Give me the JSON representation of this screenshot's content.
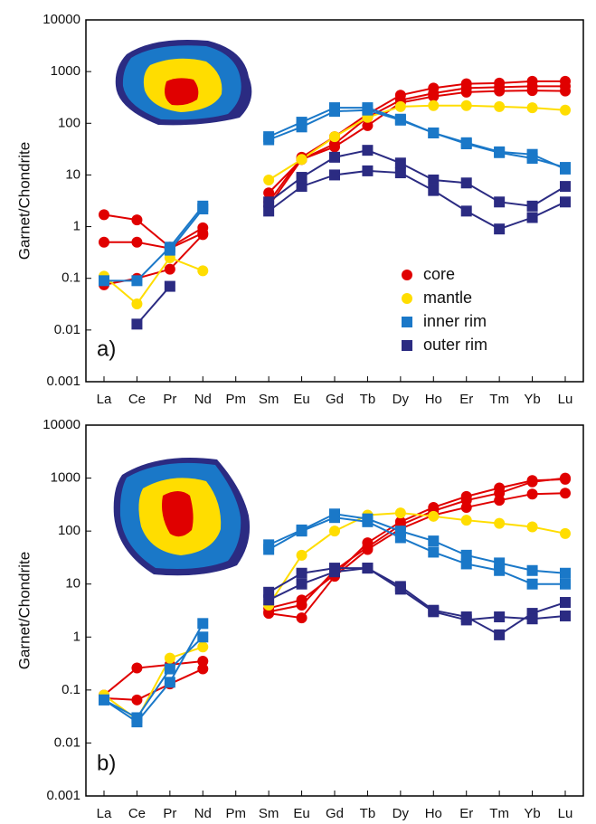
{
  "chart_data": [
    {
      "type": "line",
      "log_scale": true,
      "ylabel": "Garnet/Chondrite",
      "annotation": "a)",
      "legend": "lower right",
      "categories": [
        "La",
        "Ce",
        "Pr",
        "Nd",
        "Pm",
        "Sm",
        "Eu",
        "Gd",
        "Tb",
        "Dy",
        "Ho",
        "Er",
        "Tm",
        "Yb",
        "Lu"
      ],
      "ylim": [
        0.001,
        10000
      ],
      "yticks": [
        0.001,
        0.01,
        0.1,
        1,
        10,
        100,
        1000,
        10000
      ],
      "series": [
        {
          "name": "core",
          "color": "#e00000",
          "marker": "circle",
          "lines": [
            [
              1.7,
              1.35,
              0.4,
              0.95,
              null,
              4.5,
              20,
              35,
              90,
              250,
              330,
              400,
              420,
              430,
              420
            ],
            [
              0.5,
              0.5,
              0.38,
              0.75,
              null,
              3,
              22,
              55,
              150,
              350,
              480,
              580,
              600,
              650,
              650
            ],
            [
              0.075,
              0.1,
              0.15,
              0.7,
              null,
              2.5,
              20,
              40,
              130,
              280,
              380,
              480,
              500,
              520,
              520
            ]
          ]
        },
        {
          "name": "mantle",
          "color": "#ffdd00",
          "marker": "circle",
          "lines": [
            [
              0.11,
              0.032,
              0.25,
              0.14,
              null,
              8,
              20,
              55,
              130,
              210,
              220,
              220,
              210,
              200,
              180
            ]
          ]
        },
        {
          "name": "inner rim",
          "color": "#1a78c8",
          "marker": "square",
          "lines": [
            [
              0.09,
              0.09,
              0.4,
              2.5,
              null,
              55,
              105,
              200,
              200,
              120,
              65,
              42,
              28,
              25,
              13
            ],
            [
              null,
              null,
              0.35,
              2.2,
              null,
              48,
              85,
              170,
              180,
              115,
              65,
              40,
              27,
              21,
              14
            ]
          ]
        },
        {
          "name": "outer rim",
          "color": "#2b2b82",
          "marker": "square",
          "lines": [
            [
              null,
              0.013,
              0.07,
              null,
              null,
              2,
              6,
              10,
              12,
              11,
              5,
              2,
              0.9,
              1.5,
              3
            ],
            [
              null,
              null,
              null,
              null,
              null,
              3,
              9,
              22,
              30,
              17,
              8,
              7,
              3,
              2.5,
              6
            ]
          ]
        }
      ]
    },
    {
      "type": "line",
      "log_scale": true,
      "ylabel": "Garnet/Chondrite",
      "annotation": "b)",
      "categories": [
        "La",
        "Ce",
        "Pr",
        "Nd",
        "Pm",
        "Sm",
        "Eu",
        "Gd",
        "Tb",
        "Dy",
        "Ho",
        "Er",
        "Tm",
        "Yb",
        "Lu"
      ],
      "ylim": [
        0.001,
        10000
      ],
      "yticks": [
        0.001,
        0.01,
        0.1,
        1,
        10,
        100,
        1000,
        10000
      ],
      "series": [
        {
          "color": "#e00000",
          "marker": "circle",
          "lines": [
            [
              0.08,
              0.26,
              0.3,
              0.35,
              null,
              3.5,
              5,
              15,
              60,
              150,
              280,
              450,
              650,
              900,
              950
            ],
            [
              0.07,
              0.065,
              0.13,
              0.25,
              null,
              2.8,
              2.3,
              14,
              45,
              110,
              200,
              280,
              380,
              500,
              520
            ],
            [
              null,
              null,
              null,
              null,
              null,
              3,
              4,
              18,
              50,
              130,
              240,
              380,
              520,
              850,
              1000
            ]
          ]
        },
        {
          "color": "#ffdd00",
          "marker": "circle",
          "lines": [
            [
              0.08,
              0.028,
              0.4,
              0.65,
              null,
              4,
              35,
              100,
              200,
              220,
              190,
              160,
              140,
              120,
              90
            ]
          ]
        },
        {
          "color": "#1a78c8",
          "marker": "square",
          "lines": [
            [
              0.065,
              0.025,
              0.14,
              1.8,
              null,
              55,
              105,
              210,
              170,
              100,
              65,
              35,
              25,
              18,
              16
            ],
            [
              0.065,
              0.03,
              0.25,
              1.0,
              null,
              45,
              100,
              180,
              150,
              75,
              40,
              24,
              18,
              10,
              10
            ]
          ]
        },
        {
          "color": "#2b2b82",
          "marker": "square",
          "lines": [
            [
              null,
              null,
              null,
              null,
              null,
              7,
              16,
              20,
              20,
              9,
              3.2,
              2.4,
              1.1,
              2.8,
              4.5
            ],
            [
              null,
              null,
              null,
              null,
              null,
              5,
              10,
              17,
              20,
              8,
              3,
              2.1,
              2.4,
              2.2,
              2.5
            ]
          ]
        }
      ]
    }
  ]
}
